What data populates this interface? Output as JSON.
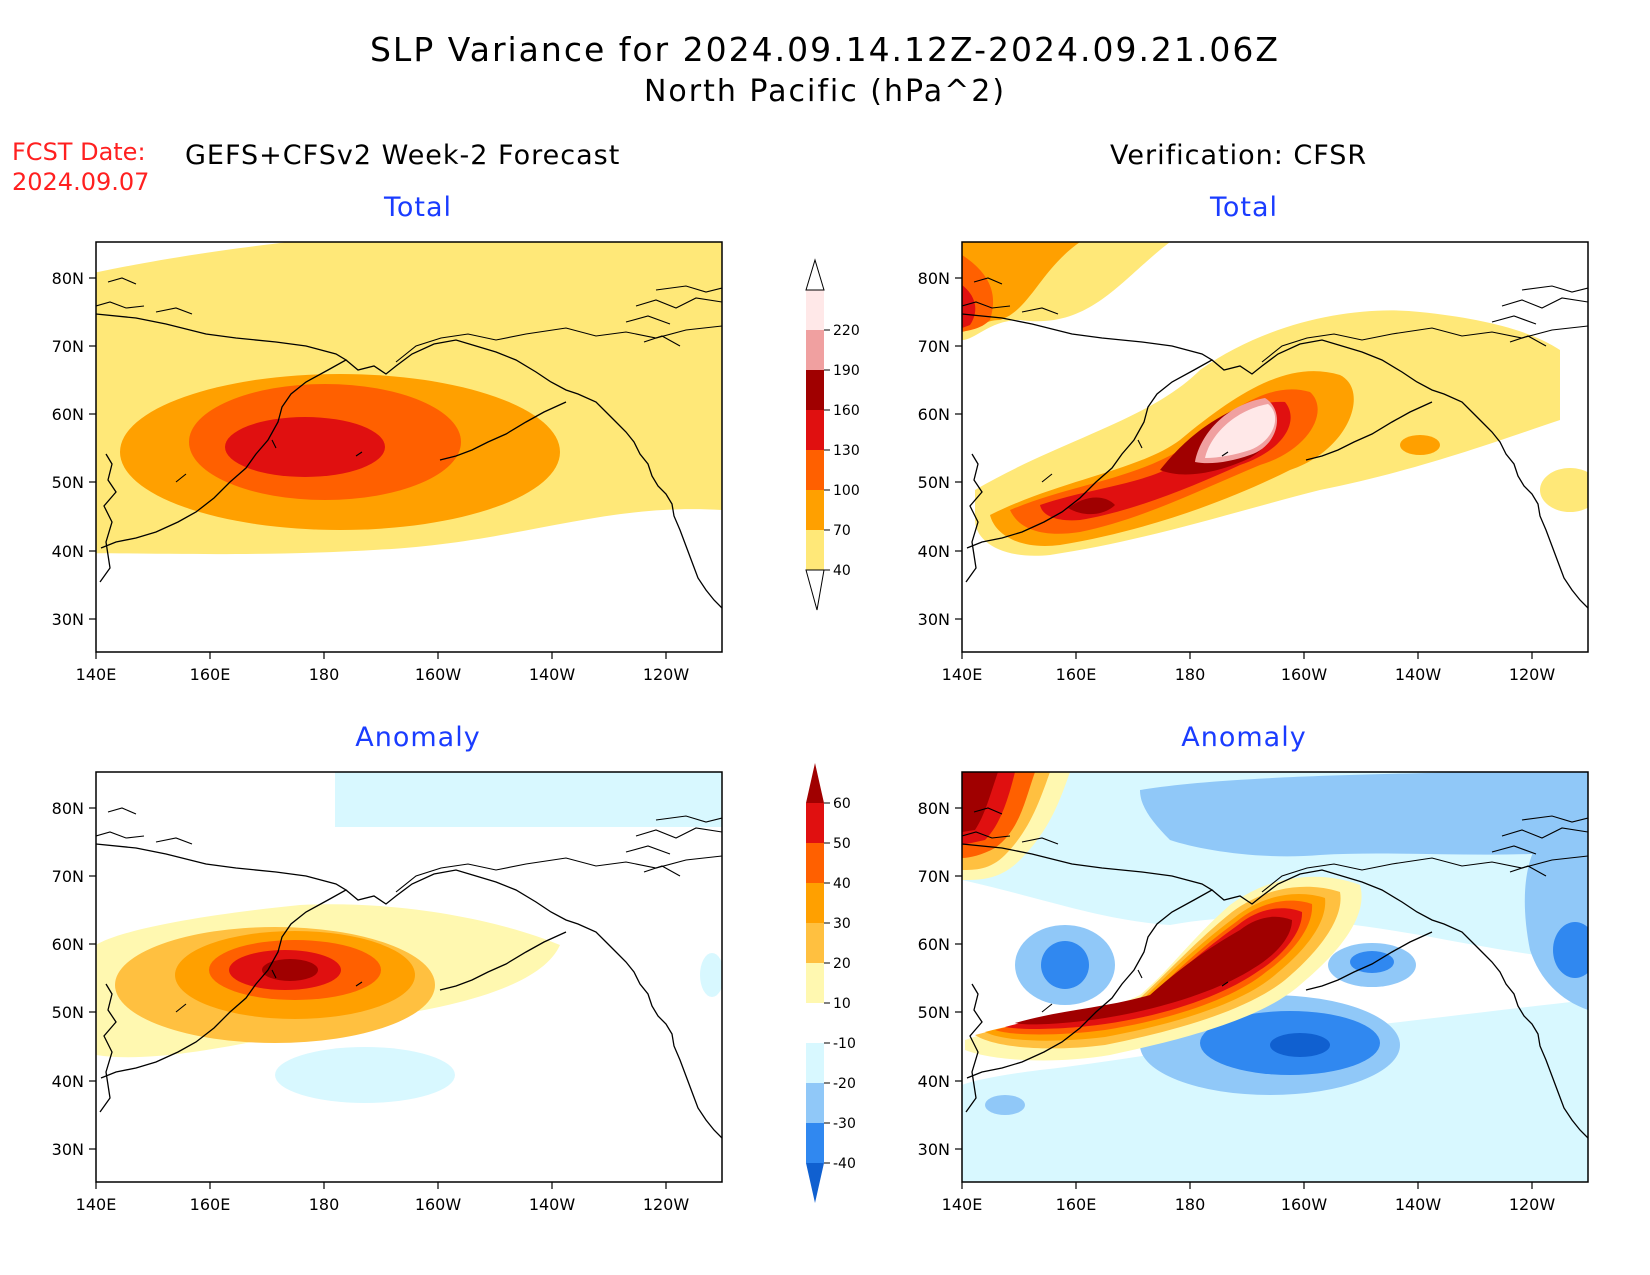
{
  "header": {
    "title": "SLP Variance for 2024.09.14.12Z-2024.09.21.06Z",
    "subtitle": "North Pacific (hPa^2)",
    "fcst_label": "FCST Date:",
    "fcst_date": "2024.09.07",
    "left_subtitle": "GEFS+CFSv2 Week-2 Forecast",
    "right_subtitle": "Verification: CFSR"
  },
  "panels": {
    "top_left_title": "Total",
    "top_right_title": "Total",
    "bottom_left_title": "Anomaly",
    "bottom_right_title": "Anomaly"
  },
  "axes": {
    "lon_labels": [
      "140E",
      "160E",
      "180",
      "160W",
      "140W",
      "120W"
    ],
    "lat_labels": [
      "80N",
      "70N",
      "60N",
      "50N",
      "40N",
      "30N"
    ]
  },
  "colorbars": {
    "total": {
      "levels": [
        "40",
        "70",
        "100",
        "130",
        "160",
        "190",
        "220"
      ],
      "colors": [
        "#ffe878",
        "#ffa000",
        "#ff6000",
        "#e01010",
        "#a00000",
        "#f0a0a0",
        "#ffe8e8"
      ]
    },
    "anomaly": {
      "levels": [
        "-40",
        "-30",
        "-20",
        "-10",
        "10",
        "20",
        "30",
        "40",
        "50",
        "60"
      ],
      "colors": [
        "#1060d0",
        "#3088f0",
        "#90c8f8",
        "#d8f8ff",
        "#ffffff",
        "#fff8b0",
        "#ffc040",
        "#ffa000",
        "#ff6000",
        "#e01010",
        "#a00000"
      ]
    }
  }
}
